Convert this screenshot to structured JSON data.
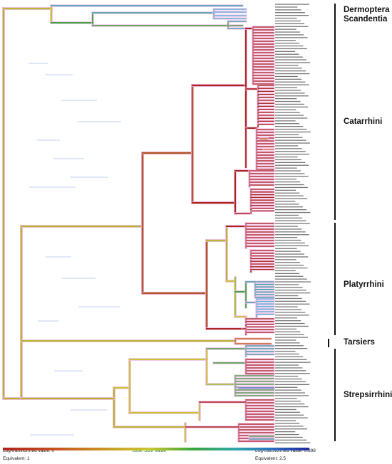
{
  "clades": [
    {
      "id": "dermoptera",
      "label": "Dermoptera &\nScandentia",
      "color": "#111111"
    },
    {
      "id": "catarrhini",
      "label": "Catarrhini",
      "color": "#111111"
    },
    {
      "id": "platyrrhini",
      "label": "Platyrrhini",
      "color": "#111111"
    },
    {
      "id": "tarsiers",
      "label": "Tarsiers",
      "color": "#111111"
    },
    {
      "id": "strepsirrhini",
      "label": "Strepsirrhini",
      "color": "#111111"
    }
  ],
  "legend": {
    "title": "Litter Size Value",
    "min_label": "Log-transformed value: 0",
    "min_equiv": "Equivalent: 1",
    "max_label": "Log-transformed value: 0.398",
    "max_equiv": "Equivalent: 2.5",
    "gradient_colors": [
      "#b0231d",
      "#c8541f",
      "#c9a326",
      "#c9c72e",
      "#3aa63a",
      "#2fa7a9",
      "#2d6fc0",
      "#2526a0"
    ]
  }
}
